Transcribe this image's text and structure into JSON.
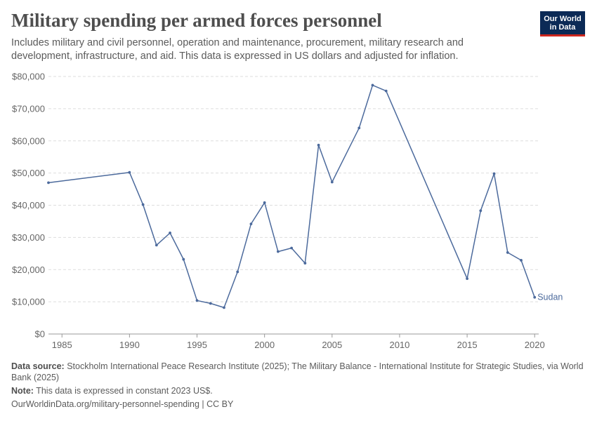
{
  "header": {
    "title": "Military spending per armed forces personnel",
    "subtitle": "Includes military and civil personnel, operation and maintenance, procurement, military research and development, infrastructure, and aid. This data is expressed in US dollars and adjusted for inflation."
  },
  "logo": {
    "line1": "Our World",
    "line2": "in Data"
  },
  "chart_data": {
    "type": "line",
    "title": "Military spending per armed forces personnel",
    "xlabel": "",
    "ylabel": "",
    "xlim": [
      1984,
      2020.3
    ],
    "ylim": [
      0,
      80000
    ],
    "x_ticks": [
      1985,
      1990,
      1995,
      2000,
      2005,
      2010,
      2015,
      2020
    ],
    "y_ticks": [
      0,
      10000,
      20000,
      30000,
      40000,
      50000,
      60000,
      70000,
      80000
    ],
    "y_tick_labels": [
      "$0",
      "$10,000",
      "$20,000",
      "$30,000",
      "$40,000",
      "$50,000",
      "$60,000",
      "$70,000",
      "$80,000"
    ],
    "grid": true,
    "series": [
      {
        "name": "Sudan",
        "color": "#4c6a9c",
        "x": [
          1984,
          1990,
          1991,
          1992,
          1993,
          1994,
          1995,
          1996,
          1997,
          1998,
          1999,
          2000,
          2001,
          2002,
          2003,
          2004,
          2005,
          2007,
          2008,
          2009,
          2015,
          2016,
          2017,
          2018,
          2019,
          2020
        ],
        "y": [
          47000,
          50200,
          40200,
          27600,
          31400,
          23200,
          10400,
          9500,
          8200,
          19300,
          34200,
          40800,
          25600,
          26700,
          22000,
          58700,
          47200,
          64000,
          77300,
          75500,
          17200,
          38300,
          49800,
          25300,
          22900,
          11400
        ]
      }
    ]
  },
  "footer": {
    "source_label": "Data source:",
    "source_text": "Stockholm International Peace Research Institute (2025); The Military Balance - International Institute for Strategic Studies, via World Bank (2025)",
    "note_label": "Note:",
    "note_text": "This data is expressed in constant 2023 US$.",
    "url": "OurWorldinData.org/military-personnel-spending | CC BY"
  }
}
